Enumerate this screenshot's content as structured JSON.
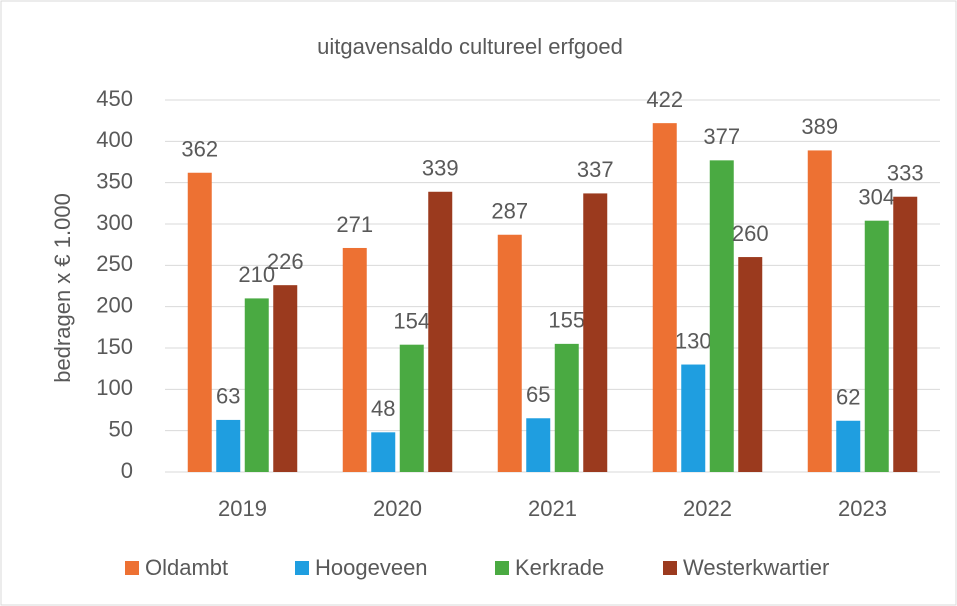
{
  "chart_data": {
    "type": "bar",
    "title": "uitgavensaldo cultureel erfgoed",
    "y_label": "bedragen x € 1.000",
    "categories": [
      "2019",
      "2020",
      "2021",
      "2022",
      "2023"
    ],
    "series": [
      {
        "name": "Oldambt",
        "color": "#ed7133",
        "values": [
          362,
          271,
          287,
          422,
          389
        ]
      },
      {
        "name": "Hoogeveen",
        "color": "#1f9ee0",
        "values": [
          63,
          48,
          65,
          130,
          62
        ]
      },
      {
        "name": "Kerkrade",
        "color": "#4aaa42",
        "values": [
          210,
          154,
          155,
          377,
          304
        ]
      },
      {
        "name": "Westerkwartier",
        "color": "#9b3a1e",
        "values": [
          226,
          339,
          337,
          260,
          333
        ]
      }
    ],
    "ylim": [
      0,
      450
    ],
    "yticks": [
      0,
      50,
      100,
      150,
      200,
      250,
      300,
      350,
      400,
      450
    ],
    "grid": true,
    "legend": "bottom"
  }
}
